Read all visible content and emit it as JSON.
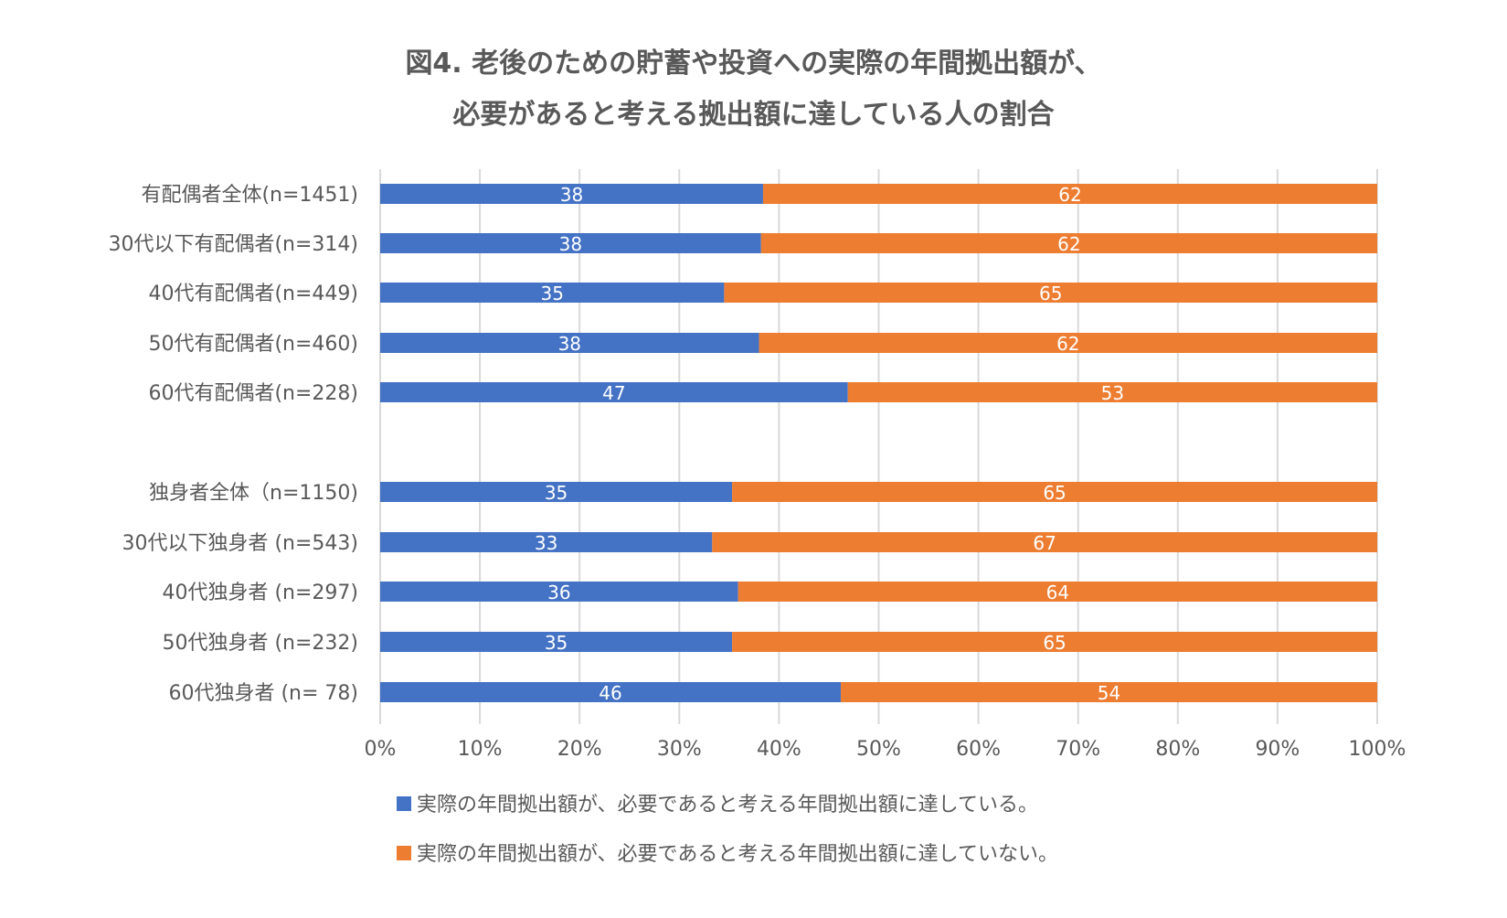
{
  "chart_data": {
    "type": "bar",
    "orientation": "horizontal",
    "stacked": true,
    "title": [
      "図4. 老後のための貯蓄や投資への実際の年間拠出額が、",
      "必要があると考える拠出額に達している人の割合"
    ],
    "categories": [
      "有配偶者全体(n=1451)",
      "30代以下有配偶者(n=314)",
      "40代有配偶者(n=449)",
      "50代有配偶者(n=460)",
      "60代有配偶者(n=228)",
      "独身者全体（n=1150)",
      "30代以下独身者 (n=543)",
      "40代独身者 (n=297)",
      "50代独身者 (n=232)",
      "60代独身者 (n= 78)"
    ],
    "series": [
      {
        "name": "実際の年間拠出額が、必要であると考える年間拠出額に達している。",
        "color": "#4472C4",
        "values": [
          38.4,
          38.2,
          34.5,
          38.0,
          46.9,
          35.3,
          33.3,
          35.9,
          35.3,
          46.2
        ],
        "labels": [
          "38",
          "38",
          "35",
          "38",
          "47",
          "35",
          "33",
          "36",
          "35",
          "46"
        ]
      },
      {
        "name": "実際の年間拠出額が、必要であると考える年間拠出額に達していない。",
        "color": "#ED7D31",
        "values": [
          61.6,
          61.8,
          65.5,
          62.0,
          53.1,
          64.7,
          66.7,
          64.1,
          64.7,
          53.8
        ],
        "labels": [
          "62",
          "62",
          "65",
          "62",
          "53",
          "65",
          "67",
          "64",
          "65",
          "54"
        ]
      }
    ],
    "xlim": [
      0,
      100
    ],
    "xticks": [
      "0%",
      "10%",
      "20%",
      "30%",
      "40%",
      "50%",
      "60%",
      "70%",
      "80%",
      "90%",
      "100%"
    ],
    "grid": true,
    "legend_position": "bottom"
  }
}
